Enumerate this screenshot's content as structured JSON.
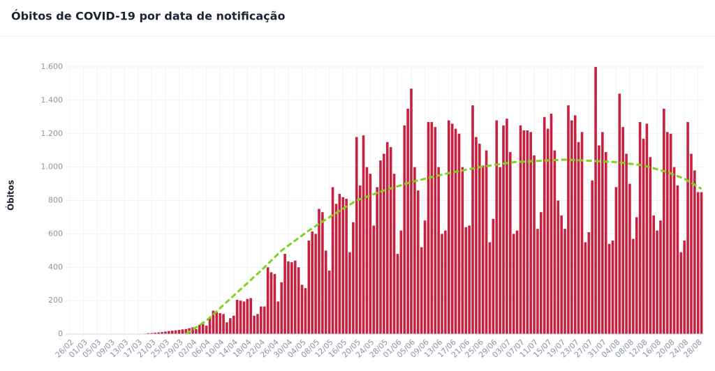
{
  "chart_data": {
    "type": "bar",
    "title": "Óbitos de COVID-19 por data de notificação",
    "ylabel": "Óbitos",
    "categories": [
      "26/02",
      null,
      null,
      null,
      "01/03",
      null,
      null,
      null,
      "05/03",
      null,
      null,
      null,
      "09/03",
      null,
      null,
      null,
      "13/03",
      null,
      null,
      null,
      "17/03",
      null,
      null,
      null,
      "21/03",
      null,
      null,
      null,
      "25/03",
      null,
      null,
      null,
      "29/03",
      null,
      null,
      null,
      "02/04",
      null,
      null,
      null,
      "06/04",
      null,
      null,
      null,
      "10/04",
      null,
      null,
      null,
      "14/04",
      null,
      null,
      null,
      "18/04",
      null,
      null,
      null,
      "22/04",
      null,
      null,
      null,
      "26/04",
      null,
      null,
      null,
      "30/04",
      null,
      null,
      null,
      "04/05",
      null,
      null,
      null,
      "08/05",
      null,
      null,
      null,
      "12/05",
      null,
      null,
      null,
      "16/05",
      null,
      null,
      null,
      "20/05",
      null,
      null,
      null,
      "24/05",
      null,
      null,
      null,
      "28/05",
      null,
      null,
      null,
      "01/06",
      null,
      null,
      null,
      "05/06",
      null,
      null,
      null,
      "09/06",
      null,
      null,
      null,
      "13/06",
      null,
      null,
      null,
      "17/06",
      null,
      null,
      null,
      "21/06",
      null,
      null,
      null,
      "25/06",
      null,
      null,
      null,
      "29/06",
      null,
      null,
      null,
      "03/07",
      null,
      null,
      null,
      "07/07",
      null,
      null,
      null,
      "11/07",
      null,
      null,
      null,
      "15/07",
      null,
      null,
      null,
      "19/07",
      null,
      null,
      null,
      "23/07",
      null,
      null,
      null,
      "27/07",
      null,
      null,
      null,
      "31/07",
      null,
      null,
      null,
      "04/08",
      null,
      null,
      null,
      "08/08",
      null,
      null,
      null,
      "12/08",
      null,
      null,
      null,
      "16/08",
      null,
      null,
      null,
      "20/08",
      null,
      null,
      null,
      "24/08",
      null,
      null,
      null,
      "28/08",
      null
    ],
    "series": [
      {
        "color": "#c8203f",
        "values": [
          0,
          0,
          0,
          0,
          0,
          0,
          0,
          0,
          0,
          0,
          0,
          0,
          0,
          0,
          0,
          0,
          0,
          0,
          0,
          0,
          1,
          2,
          3,
          5,
          6,
          8,
          10,
          12,
          15,
          18,
          20,
          22,
          25,
          28,
          30,
          35,
          40,
          30,
          55,
          60,
          50,
          95,
          140,
          130,
          125,
          120,
          70,
          95,
          110,
          205,
          200,
          195,
          210,
          215,
          110,
          120,
          165,
          165,
          400,
          370,
          360,
          195,
          310,
          480,
          435,
          430,
          440,
          400,
          295,
          275,
          560,
          615,
          600,
          750,
          730,
          500,
          380,
          880,
          780,
          840,
          820,
          810,
          490,
          670,
          1180,
          890,
          1190,
          1000,
          960,
          650,
          880,
          1040,
          1080,
          1150,
          1120,
          960,
          480,
          620,
          1250,
          1350,
          1470,
          1000,
          860,
          520,
          680,
          1270,
          1270,
          1240,
          1000,
          600,
          620,
          1280,
          1260,
          1230,
          1200,
          1000,
          640,
          650,
          1370,
          1180,
          1140,
          1010,
          1100,
          550,
          690,
          1280,
          1000,
          1250,
          1290,
          1090,
          600,
          620,
          1250,
          1220,
          1220,
          1210,
          1070,
          630,
          730,
          1300,
          1230,
          1320,
          1100,
          800,
          710,
          630,
          1370,
          1280,
          1310,
          1150,
          1210,
          550,
          610,
          920,
          1600,
          1130,
          1210,
          1090,
          540,
          560,
          880,
          1440,
          1240,
          1080,
          900,
          570,
          700,
          1270,
          1170,
          1260,
          1060,
          710,
          620,
          680,
          1350,
          1210,
          1200,
          1000,
          890,
          490,
          560,
          1270,
          1080,
          980,
          850,
          850
        ]
      },
      {
        "color": "#7ed321",
        "type": "line",
        "dashed": true,
        "values": [
          null,
          null,
          null,
          null,
          null,
          null,
          null,
          null,
          null,
          null,
          null,
          null,
          null,
          null,
          null,
          null,
          null,
          null,
          null,
          null,
          null,
          null,
          null,
          null,
          null,
          null,
          null,
          null,
          null,
          null,
          null,
          null,
          null,
          null,
          0,
          13,
          27,
          40,
          53,
          67,
          80,
          99,
          118,
          136,
          155,
          174,
          193,
          211,
          230,
          249,
          268,
          286,
          305,
          324,
          343,
          361,
          380,
          400,
          420,
          440,
          460,
          480,
          500,
          515,
          530,
          545,
          560,
          575,
          590,
          605,
          620,
          633,
          647,
          660,
          673,
          687,
          700,
          713,
          725,
          738,
          750,
          763,
          775,
          788,
          800,
          808,
          815,
          823,
          830,
          838,
          845,
          853,
          860,
          866,
          873,
          879,
          885,
          891,
          898,
          904,
          910,
          915,
          920,
          925,
          930,
          935,
          940,
          945,
          950,
          955,
          960,
          964,
          968,
          972,
          976,
          980,
          984,
          988,
          992,
          996,
          1000,
          1003,
          1006,
          1009,
          1012,
          1015,
          1018,
          1021,
          1024,
          1027,
          1030,
          1031,
          1032,
          1033,
          1034,
          1035,
          1036,
          1037,
          1038,
          1039,
          1040,
          1041,
          1042,
          1043,
          1044,
          1045,
          1044,
          1043,
          1042,
          1041,
          1040,
          1039,
          1038,
          1037,
          1036,
          1035,
          1034,
          1033,
          1032,
          1031,
          1030,
          1028,
          1025,
          1023,
          1020,
          1018,
          1015,
          1013,
          1010,
          1004,
          999,
          993,
          987,
          981,
          976,
          970,
          962,
          954,
          946,
          938,
          930,
          918,
          906,
          894,
          882,
          870
        ]
      }
    ],
    "ylim": [
      0,
      1600
    ],
    "yticks": [
      0,
      200,
      400,
      600,
      800,
      {
        "value": 1000,
        "label": "1.000"
      },
      {
        "value": 1200,
        "label": "1.200"
      },
      {
        "value": 1400,
        "label": "1.400"
      },
      {
        "value": 1600,
        "label": "1.600"
      }
    ],
    "grid": true
  }
}
